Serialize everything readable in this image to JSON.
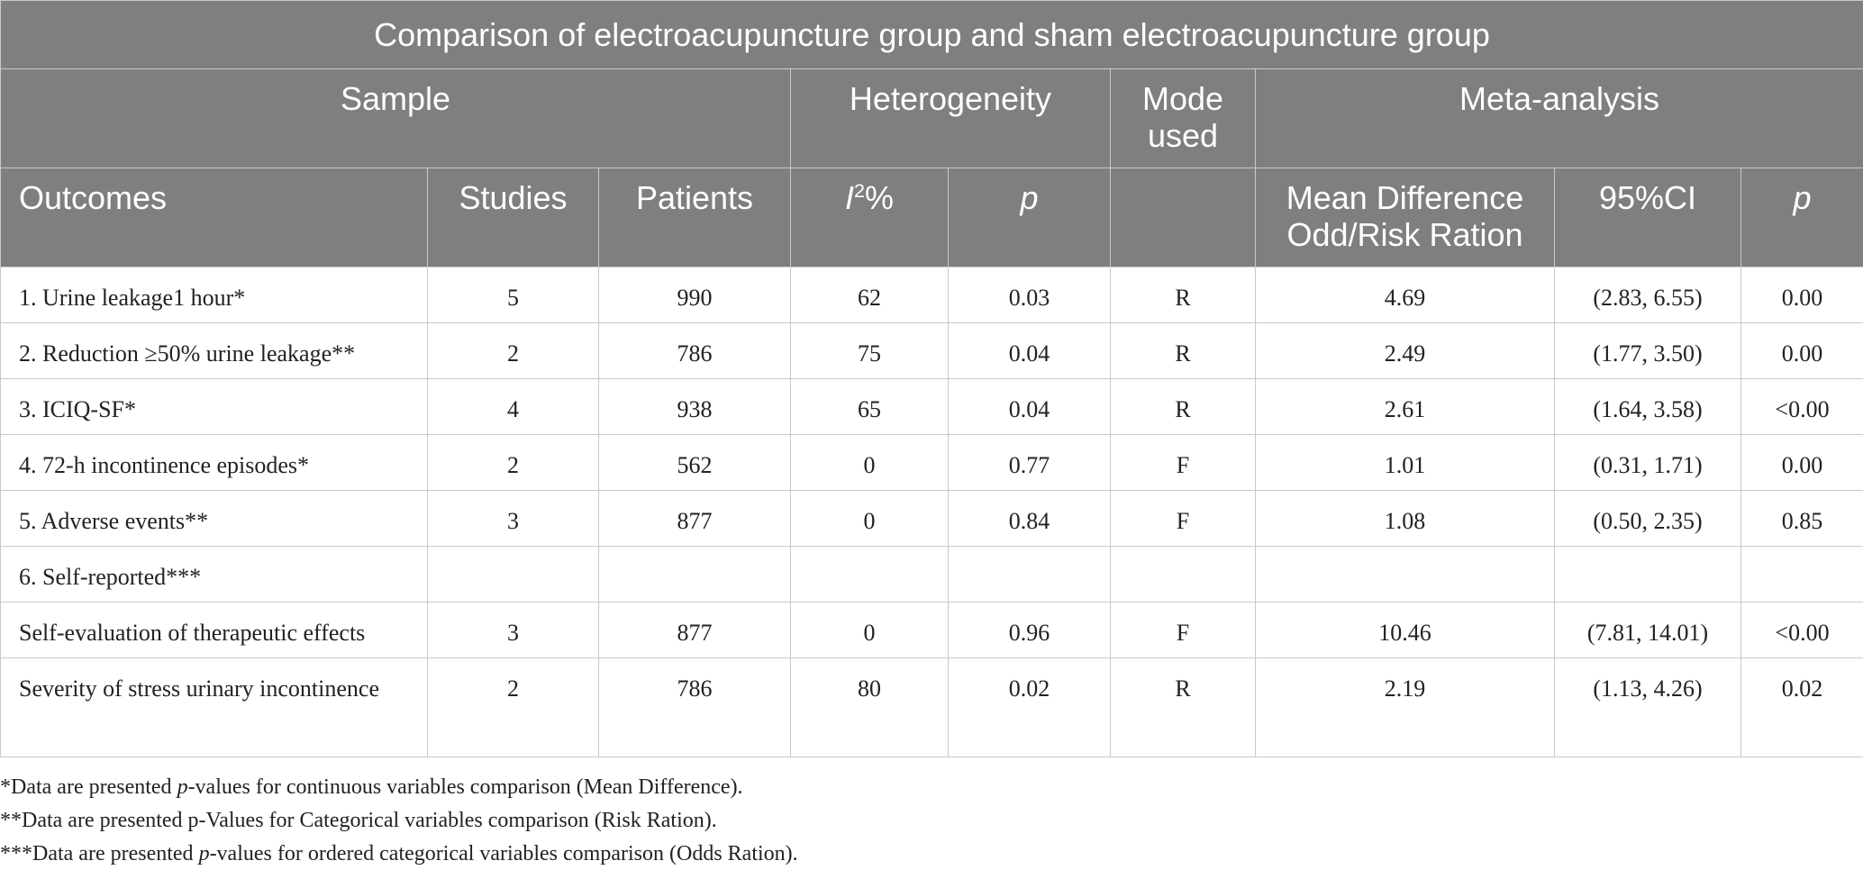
{
  "table": {
    "title": "Comparison of electroacupuncture group and sham electroacupuncture group",
    "groups": {
      "sample": "Sample",
      "heterogeneity": "Heterogeneity",
      "mode_used_line1": "Mode",
      "mode_used_line2": "used",
      "meta_analysis": "Meta-analysis"
    },
    "columns": {
      "outcomes": "Outcomes",
      "studies": "Studies",
      "patients": "Patients",
      "i2_base": "I",
      "i2_sup": "2",
      "i2_suffix": "%",
      "het_p": "p",
      "mode": "",
      "effect_line1": "Mean Difference",
      "effect_line2": "Odd/Risk Ration",
      "ci": "95%CI",
      "meta_p": "p"
    },
    "rows": [
      {
        "outcome": "1. Urine leakage1 hour*",
        "studies": "5",
        "patients": "990",
        "i2": "62",
        "het_p": "0.03",
        "mode": "R",
        "effect": "4.69",
        "ci": "(2.83, 6.55)",
        "p": "0.00"
      },
      {
        "outcome": "2. Reduction ≥50% urine leakage**",
        "studies": "2",
        "patients": "786",
        "i2": "75",
        "het_p": "0.04",
        "mode": "R",
        "effect": "2.49",
        "ci": "(1.77, 3.50)",
        "p": "0.00"
      },
      {
        "outcome": "3. ICIQ-SF*",
        "studies": "4",
        "patients": "938",
        "i2": "65",
        "het_p": "0.04",
        "mode": "R",
        "effect": "2.61",
        "ci": "(1.64, 3.58)",
        "p": "<0.00"
      },
      {
        "outcome": "4. 72-h incontinence episodes*",
        "studies": "2",
        "patients": "562",
        "i2": "0",
        "het_p": "0.77",
        "mode": "F",
        "effect": "1.01",
        "ci": "(0.31, 1.71)",
        "p": "0.00"
      },
      {
        "outcome": "5. Adverse events**",
        "studies": "3",
        "patients": "877",
        "i2": "0",
        "het_p": "0.84",
        "mode": "F",
        "effect": "1.08",
        "ci": "(0.50, 2.35)",
        "p": "0.85"
      },
      {
        "outcome": "6. Self-reported***",
        "studies": "",
        "patients": "",
        "i2": "",
        "het_p": "",
        "mode": "",
        "effect": "",
        "ci": "",
        "p": ""
      },
      {
        "outcome": "Self-evaluation of therapeutic effects",
        "studies": "3",
        "patients": "877",
        "i2": "0",
        "het_p": "0.96",
        "mode": "F",
        "effect": "10.46",
        "ci": "(7.81, 14.01)",
        "p": "<0.00"
      },
      {
        "outcome": "Severity of stress urinary incontinence",
        "studies": "2",
        "patients": "786",
        "i2": "80",
        "het_p": "0.02",
        "mode": "R",
        "effect": "2.19",
        "ci": "(1.13, 4.26)",
        "p": "0.02"
      }
    ]
  },
  "footnotes": {
    "note1": {
      "prefix": "*Data are presented ",
      "italic": "p",
      "suffix": "-values for continuous variables comparison (Mean Difference)."
    },
    "note2": {
      "text": "**Data are presented p-Values for Categorical variables comparison (Risk Ration)."
    },
    "note3": {
      "prefix": "***Data are presented ",
      "italic": "p",
      "suffix": "-values for ordered categorical variables comparison (Odds Ration)."
    }
  }
}
